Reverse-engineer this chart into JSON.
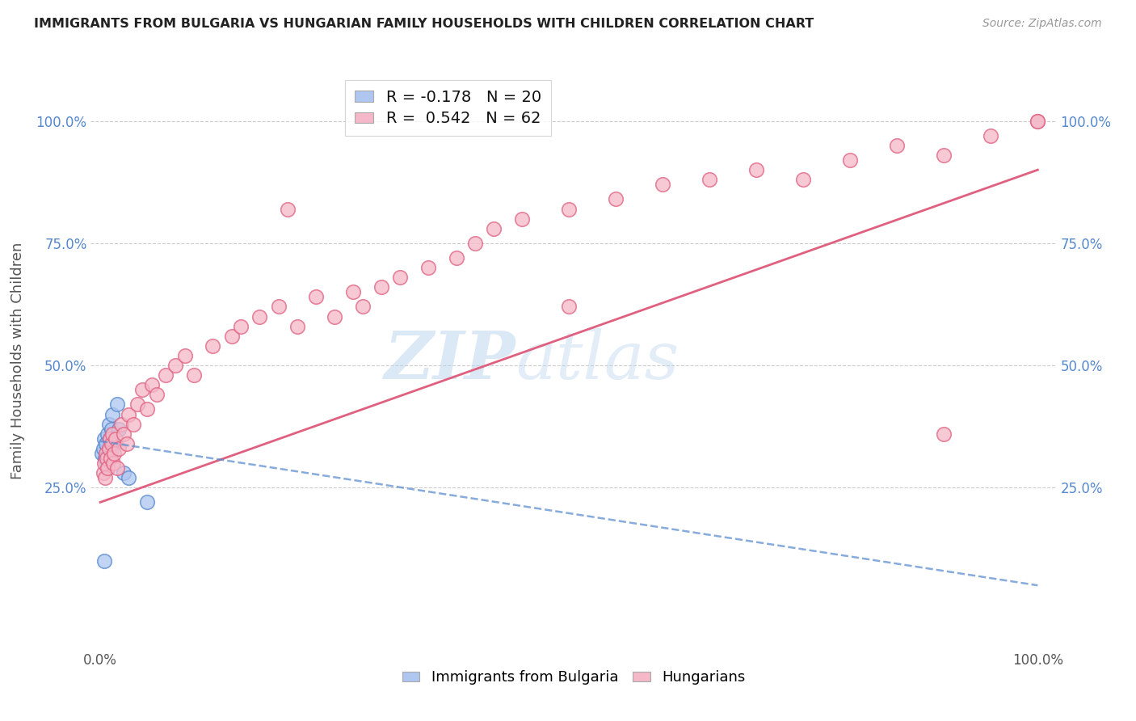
{
  "title": "IMMIGRANTS FROM BULGARIA VS HUNGARIAN FAMILY HOUSEHOLDS WITH CHILDREN CORRELATION CHART",
  "source": "Source: ZipAtlas.com",
  "ylabel": "Family Households with Children",
  "watermark_zip": "ZIP",
  "watermark_atlas": "atlas",
  "xlim": [
    -0.01,
    1.02
  ],
  "ylim": [
    -0.08,
    1.1
  ],
  "yticks": [
    0.25,
    0.5,
    0.75,
    1.0
  ],
  "ytick_labels": [
    "25.0%",
    "50.0%",
    "75.0%",
    "100.0%"
  ],
  "xtick_vals": [
    0.0,
    0.25,
    0.5,
    0.75,
    1.0
  ],
  "xtick_labels": [
    "0.0%",
    "",
    "",
    "",
    "100.0%"
  ],
  "legend1_label": "R = -0.178   N = 20",
  "legend2_label": "R =  0.542   N = 62",
  "legend1_color": "#aec6f0",
  "legend2_color": "#f4b8c8",
  "blue_scatter_color": "#aec6f0",
  "pink_scatter_color": "#f4b8c8",
  "blue_line_color": "#5588cc",
  "pink_line_color": "#e06080",
  "background_color": "#ffffff",
  "grid_color": "#cccccc",
  "blue_x": [
    0.002,
    0.003,
    0.004,
    0.005,
    0.006,
    0.007,
    0.008,
    0.009,
    0.01,
    0.011,
    0.012,
    0.013,
    0.015,
    0.018,
    0.02,
    0.025,
    0.03,
    0.05,
    0.008,
    0.004
  ],
  "blue_y": [
    0.32,
    0.33,
    0.35,
    0.31,
    0.34,
    0.3,
    0.36,
    0.38,
    0.35,
    0.32,
    0.37,
    0.4,
    0.34,
    0.42,
    0.37,
    0.28,
    0.27,
    0.22,
    0.29,
    0.1
  ],
  "pink_x": [
    0.003,
    0.004,
    0.005,
    0.006,
    0.007,
    0.008,
    0.009,
    0.01,
    0.011,
    0.012,
    0.013,
    0.014,
    0.015,
    0.016,
    0.018,
    0.02,
    0.022,
    0.025,
    0.028,
    0.03,
    0.035,
    0.04,
    0.045,
    0.05,
    0.055,
    0.06,
    0.07,
    0.08,
    0.09,
    0.1,
    0.12,
    0.14,
    0.15,
    0.17,
    0.19,
    0.21,
    0.23,
    0.25,
    0.27,
    0.28,
    0.3,
    0.32,
    0.35,
    0.38,
    0.4,
    0.42,
    0.45,
    0.5,
    0.55,
    0.6,
    0.65,
    0.7,
    0.75,
    0.8,
    0.85,
    0.9,
    0.95,
    1.0,
    1.0,
    0.5,
    0.9,
    0.2
  ],
  "pink_y": [
    0.28,
    0.3,
    0.27,
    0.32,
    0.31,
    0.29,
    0.33,
    0.35,
    0.31,
    0.34,
    0.36,
    0.3,
    0.32,
    0.35,
    0.29,
    0.33,
    0.38,
    0.36,
    0.34,
    0.4,
    0.38,
    0.42,
    0.45,
    0.41,
    0.46,
    0.44,
    0.48,
    0.5,
    0.52,
    0.48,
    0.54,
    0.56,
    0.58,
    0.6,
    0.62,
    0.58,
    0.64,
    0.6,
    0.65,
    0.62,
    0.66,
    0.68,
    0.7,
    0.72,
    0.75,
    0.78,
    0.8,
    0.82,
    0.84,
    0.87,
    0.88,
    0.9,
    0.88,
    0.92,
    0.95,
    0.93,
    0.97,
    1.0,
    1.0,
    0.62,
    0.36,
    0.82
  ],
  "pink_line_x0": 0.0,
  "pink_line_y0": 0.22,
  "pink_line_x1": 1.0,
  "pink_line_y1": 0.9,
  "blue_line_x0": 0.0,
  "blue_line_y0": 0.345,
  "blue_line_x1": 1.0,
  "blue_line_y1": 0.05
}
